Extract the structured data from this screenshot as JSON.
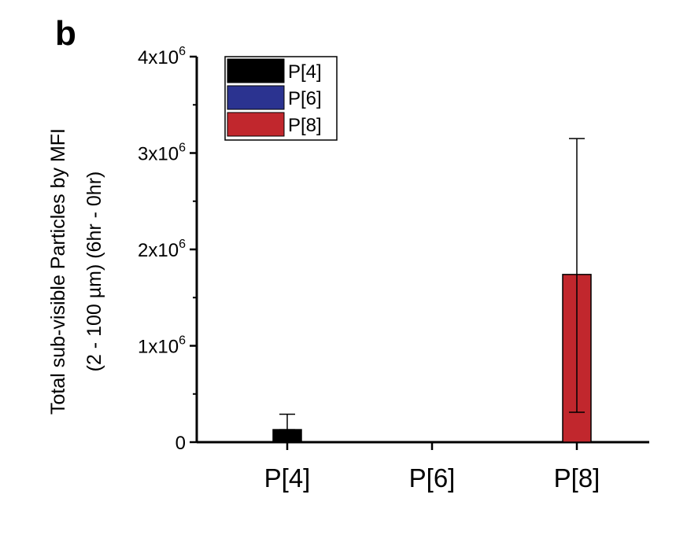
{
  "panel_label": "b",
  "chart_data": {
    "type": "bar",
    "categories": [
      "P[4]",
      "P[6]",
      "P[8]"
    ],
    "values": [
      130000,
      0,
      1740000
    ],
    "error_upper": [
      290000,
      0,
      3150000
    ],
    "error_lower": [
      130000,
      0,
      310000
    ],
    "colors": [
      "#000000",
      "#2b3390",
      "#c1272d"
    ],
    "ylabel_line1": "Total sub-visible Particles by MFI",
    "ylabel_line2": "(2 - 100 µm) (6hr - 0hr)",
    "ylim": [
      0,
      4000000
    ],
    "yticks": [
      {
        "value": 0,
        "mantissa": "0",
        "exp": ""
      },
      {
        "value": 1000000,
        "mantissa": "1x10",
        "exp": "6"
      },
      {
        "value": 2000000,
        "mantissa": "2x10",
        "exp": "6"
      },
      {
        "value": 3000000,
        "mantissa": "3x10",
        "exp": "6"
      },
      {
        "value": 4000000,
        "mantissa": "4x10",
        "exp": "6"
      }
    ],
    "legend": [
      {
        "label": "P[4]",
        "color": "#000000"
      },
      {
        "label": "P[6]",
        "color": "#2b3390"
      },
      {
        "label": "P[8]",
        "color": "#c1272d"
      }
    ],
    "legend_position": "top-left"
  }
}
